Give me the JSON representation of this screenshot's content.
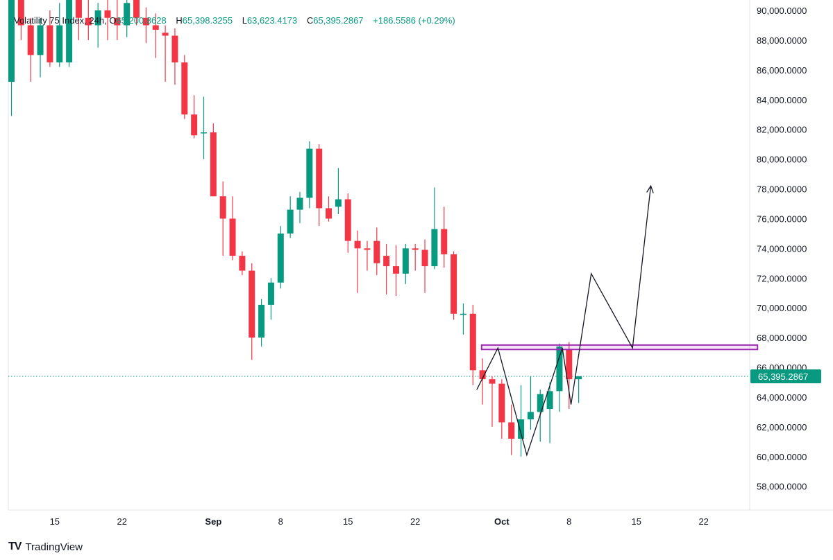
{
  "legend": {
    "symbol": "Volatility 75 Index, 24h,",
    "o_label": "O",
    "o_value": "65,200.8628",
    "h_label": "H",
    "h_value": "65,398.3255",
    "l_label": "L",
    "l_value": "63,623.4173",
    "c_label": "C",
    "c_value": "65,395.2867",
    "change": "+186.5586 (+0.29%)"
  },
  "brand": {
    "logo": "TV",
    "name": "TradingView"
  },
  "colors": {
    "up": "#089981",
    "down": "#F23645",
    "zone": "#9C27B0",
    "price_line": "#089981"
  },
  "chart_data": {
    "type": "candlestick",
    "title": "Volatility 75 Index, 24h",
    "y_ticks": [
      58000,
      60000,
      62000,
      64000,
      66000,
      68000,
      70000,
      72000,
      74000,
      76000,
      78000,
      80000,
      82000,
      84000,
      86000,
      88000,
      90000
    ],
    "y_tick_labels": [
      "58,000.0000",
      "60,000.0000",
      "62,000.0000",
      "64,000.0000",
      "66,000.0000",
      "68,000.0000",
      "70,000.0000",
      "72,000.0000",
      "74,000.0000",
      "76,000.0000",
      "78,000.0000",
      "80,000.0000",
      "82,000.0000",
      "84,000.0000",
      "86,000.0000",
      "88,000.0000",
      "90,000.0000"
    ],
    "ylim": [
      56400,
      90700
    ],
    "x_ticks": [
      {
        "label": "15",
        "bold": false,
        "index": 4.5
      },
      {
        "label": "22",
        "bold": false,
        "index": 11.5
      },
      {
        "label": "Sep",
        "bold": true,
        "index": 21
      },
      {
        "label": "8",
        "bold": false,
        "index": 28
      },
      {
        "label": "15",
        "bold": false,
        "index": 35
      },
      {
        "label": "22",
        "bold": false,
        "index": 42
      },
      {
        "label": "Oct",
        "bold": true,
        "index": 51
      },
      {
        "label": "8",
        "bold": false,
        "index": 58
      },
      {
        "label": "15",
        "bold": false,
        "index": 65
      },
      {
        "label": "22",
        "bold": false,
        "index": 72
      }
    ],
    "current_price": 65395.2867,
    "current_price_label": "65,395.2867",
    "candles": [
      {
        "o": 85200,
        "h": 91500,
        "l": 82900,
        "c": 91500
      },
      {
        "o": 91000,
        "h": 91500,
        "l": 88000,
        "c": 89000
      },
      {
        "o": 89000,
        "h": 89500,
        "l": 85200,
        "c": 87000
      },
      {
        "o": 87000,
        "h": 89500,
        "l": 85500,
        "c": 89000
      },
      {
        "o": 89000,
        "h": 90000,
        "l": 86200,
        "c": 86500
      },
      {
        "o": 86500,
        "h": 90500,
        "l": 86200,
        "c": 89000
      },
      {
        "o": 86500,
        "h": 91500,
        "l": 86200,
        "c": 91500
      },
      {
        "o": 91000,
        "h": 91500,
        "l": 88000,
        "c": 89500
      },
      {
        "o": 89500,
        "h": 91000,
        "l": 88000,
        "c": 89000
      },
      {
        "o": 89000,
        "h": 90500,
        "l": 87500,
        "c": 90000
      },
      {
        "o": 90000,
        "h": 91000,
        "l": 88000,
        "c": 89500
      },
      {
        "o": 89500,
        "h": 91000,
        "l": 88000,
        "c": 89000
      },
      {
        "o": 89000,
        "h": 91000,
        "l": 88200,
        "c": 90500
      },
      {
        "o": 91000,
        "h": 91500,
        "l": 89000,
        "c": 89500
      },
      {
        "o": 89500,
        "h": 90200,
        "l": 87800,
        "c": 89000
      },
      {
        "o": 89000,
        "h": 89800,
        "l": 86800,
        "c": 88700
      },
      {
        "o": 88500,
        "h": 89000,
        "l": 85200,
        "c": 88300
      },
      {
        "o": 88300,
        "h": 88800,
        "l": 85000,
        "c": 86500
      },
      {
        "o": 86500,
        "h": 87000,
        "l": 82700,
        "c": 83000
      },
      {
        "o": 83000,
        "h": 84300,
        "l": 81400,
        "c": 81600
      },
      {
        "o": 81800,
        "h": 84200,
        "l": 80000,
        "c": 81800
      },
      {
        "o": 81800,
        "h": 82400,
        "l": 77500,
        "c": 77500
      },
      {
        "o": 77500,
        "h": 78500,
        "l": 73500,
        "c": 76000
      },
      {
        "o": 76000,
        "h": 77500,
        "l": 73200,
        "c": 73500
      },
      {
        "o": 73500,
        "h": 73800,
        "l": 72200,
        "c": 72500
      },
      {
        "o": 72500,
        "h": 73000,
        "l": 66500,
        "c": 68000
      },
      {
        "o": 68000,
        "h": 70600,
        "l": 67400,
        "c": 70200
      },
      {
        "o": 70200,
        "h": 72000,
        "l": 69200,
        "c": 71700
      },
      {
        "o": 71700,
        "h": 75500,
        "l": 71300,
        "c": 75000
      },
      {
        "o": 75000,
        "h": 77500,
        "l": 74700,
        "c": 76600
      },
      {
        "o": 76600,
        "h": 77800,
        "l": 75700,
        "c": 77400
      },
      {
        "o": 77400,
        "h": 81200,
        "l": 76700,
        "c": 80700
      },
      {
        "o": 80700,
        "h": 81000,
        "l": 75500,
        "c": 76700
      },
      {
        "o": 76700,
        "h": 77500,
        "l": 75800,
        "c": 76000
      },
      {
        "o": 76800,
        "h": 79400,
        "l": 76300,
        "c": 77300
      },
      {
        "o": 77300,
        "h": 77700,
        "l": 73700,
        "c": 74500
      },
      {
        "o": 74500,
        "h": 75200,
        "l": 71000,
        "c": 74000
      },
      {
        "o": 74000,
        "h": 74500,
        "l": 72500,
        "c": 73900
      },
      {
        "o": 74500,
        "h": 75400,
        "l": 72200,
        "c": 73000
      },
      {
        "o": 73500,
        "h": 74300,
        "l": 70900,
        "c": 72800
      },
      {
        "o": 72800,
        "h": 74200,
        "l": 70800,
        "c": 72300
      },
      {
        "o": 72300,
        "h": 74300,
        "l": 71600,
        "c": 74000
      },
      {
        "o": 74000,
        "h": 74300,
        "l": 72500,
        "c": 73900
      },
      {
        "o": 73900,
        "h": 74600,
        "l": 71000,
        "c": 72800
      },
      {
        "o": 72800,
        "h": 78100,
        "l": 72600,
        "c": 75300
      },
      {
        "o": 75300,
        "h": 76800,
        "l": 72700,
        "c": 73600
      },
      {
        "o": 73600,
        "h": 73800,
        "l": 69200,
        "c": 69600
      },
      {
        "o": 69600,
        "h": 70300,
        "l": 68200,
        "c": 69600
      },
      {
        "o": 69600,
        "h": 70200,
        "l": 64800,
        "c": 65800
      },
      {
        "o": 65800,
        "h": 66600,
        "l": 63500,
        "c": 65200
      },
      {
        "o": 65200,
        "h": 65400,
        "l": 62000,
        "c": 64900
      },
      {
        "o": 64900,
        "h": 65200,
        "l": 61200,
        "c": 62300
      },
      {
        "o": 62300,
        "h": 63500,
        "l": 60100,
        "c": 61200
      },
      {
        "o": 61200,
        "h": 64800,
        "l": 60000,
        "c": 62500
      },
      {
        "o": 62500,
        "h": 65400,
        "l": 61800,
        "c": 63000
      },
      {
        "o": 63000,
        "h": 64500,
        "l": 61000,
        "c": 64200
      },
      {
        "o": 63200,
        "h": 65000,
        "l": 60900,
        "c": 64400
      },
      {
        "o": 64400,
        "h": 67600,
        "l": 63000,
        "c": 67400
      },
      {
        "o": 67200,
        "h": 67700,
        "l": 63200,
        "c": 65200
      },
      {
        "o": 65200,
        "h": 65400,
        "l": 63600,
        "c": 65400
      }
    ],
    "annotations": {
      "resistance_zone": {
        "top": 67500,
        "bottom": 67200,
        "start_index": 48.9,
        "end_index": 77.6
      },
      "projection_path": [
        {
          "i": 48.4,
          "p": 64500
        },
        {
          "i": 50.6,
          "p": 67300
        },
        {
          "i": 53.6,
          "p": 60100
        },
        {
          "i": 57.3,
          "p": 67300
        },
        {
          "i": 58.2,
          "p": 63500
        },
        {
          "i": 60.3,
          "p": 72300
        },
        {
          "i": 64.6,
          "p": 67300
        },
        {
          "i": 66.5,
          "p": 78200
        }
      ]
    }
  }
}
